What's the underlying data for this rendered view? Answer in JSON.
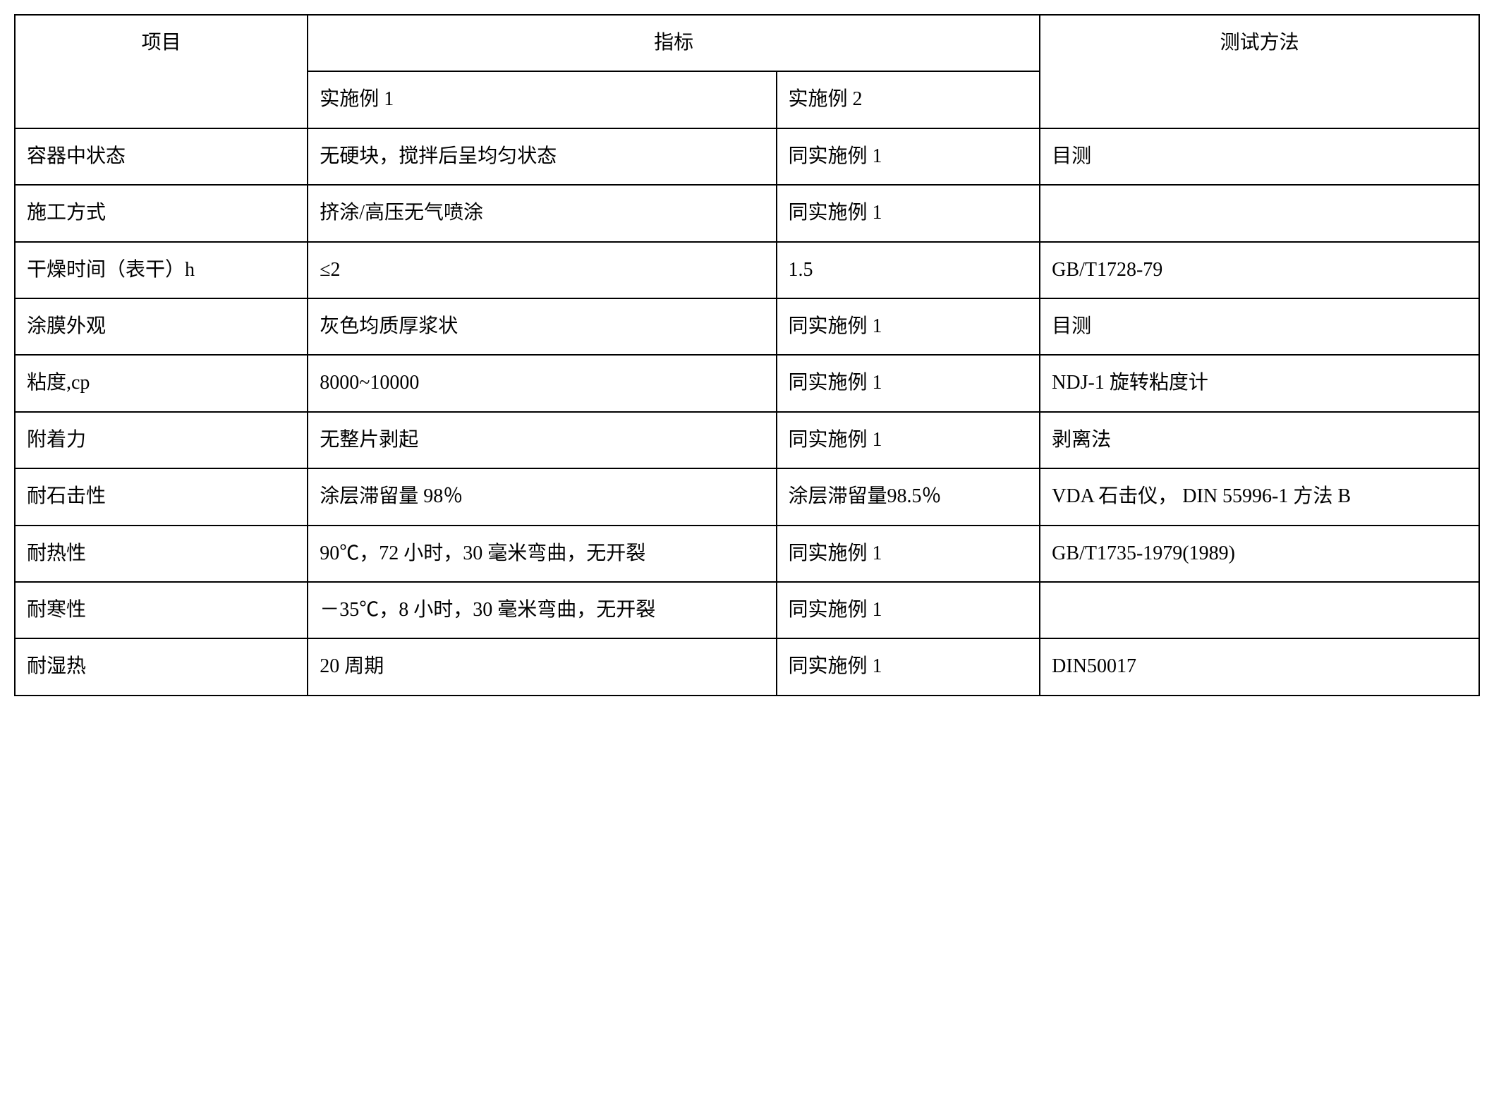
{
  "table": {
    "border_color": "#000000",
    "background_color": "#ffffff",
    "text_color": "#000000",
    "font_size_pt": 28,
    "headers": {
      "item": "项目",
      "indicator": "指标",
      "example1": "实施例 1",
      "example2": "实施例 2",
      "method": "测试方法"
    },
    "rows": [
      {
        "item": "容器中状态",
        "ex1": "无硬块，搅拌后呈均匀状态",
        "ex2": "同实施例 1",
        "method": "目测"
      },
      {
        "item": "施工方式",
        "ex1": "挤涂/高压无气喷涂",
        "ex2": "同实施例 1",
        "method": ""
      },
      {
        "item": "干燥时间（表干）h",
        "ex1": "≤2",
        "ex2": "1.5",
        "method": "GB/T1728-79"
      },
      {
        "item": "涂膜外观",
        "ex1": "灰色均质厚浆状",
        "ex2": "同实施例 1",
        "method": "目测"
      },
      {
        "item": "粘度,cp",
        "ex1": "8000~10000",
        "ex2": "同实施例 1",
        "method": "NDJ-1 旋转粘度计"
      },
      {
        "item": "附着力",
        "ex1": "无整片剥起",
        "ex2": "同实施例 1",
        "method": "剥离法"
      },
      {
        "item": "耐石击性",
        "ex1": "涂层滞留量 98％",
        "ex2": "涂层滞留量98.5％",
        "method": "VDA 石击仪， DIN 55996-1 方法 B"
      },
      {
        "item": "耐热性",
        "ex1": "90℃，72 小时，30 毫米弯曲，无开裂",
        "ex2": "同实施例 1",
        "method": "GB/T1735-1979(1989)"
      },
      {
        "item": "耐寒性",
        "ex1": "－35℃，8 小时，30 毫米弯曲，无开裂",
        "ex2": "同实施例 1",
        "method": ""
      },
      {
        "item": "耐湿热",
        "ex1": "20 周期",
        "ex2": "同实施例 1",
        "method": "DIN50017"
      }
    ]
  }
}
